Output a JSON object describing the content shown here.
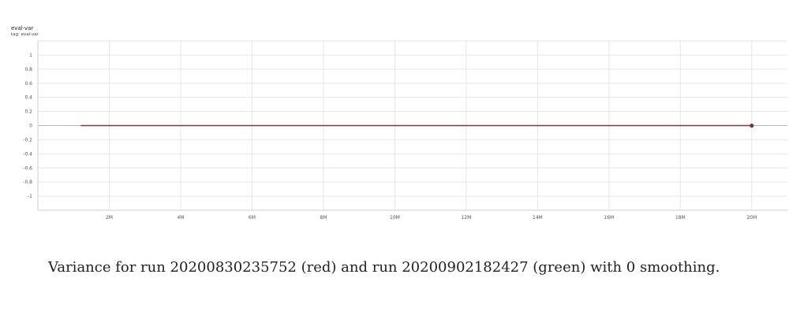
{
  "chart_data": {
    "type": "line",
    "title": "eval-var",
    "tag": "tag: eval-var",
    "xlabel": "",
    "ylabel": "",
    "xlim": [
      0,
      21000000
    ],
    "ylim": [
      -1.2,
      1.2
    ],
    "x_ticks": [
      2000000,
      4000000,
      6000000,
      8000000,
      10000000,
      12000000,
      14000000,
      16000000,
      18000000,
      20000000
    ],
    "x_tick_labels": [
      "2M",
      "4M",
      "6M",
      "8M",
      "10M",
      "12M",
      "14M",
      "16M",
      "18M",
      "20M"
    ],
    "y_ticks": [
      1,
      0.8,
      0.6,
      0.4,
      0.2,
      0,
      -0.2,
      -0.4,
      -0.6,
      -0.8,
      -1
    ],
    "y_tick_labels": [
      "1",
      "0.8",
      "0.6",
      "0.4",
      "0.2",
      "0",
      "-0.2",
      "-0.4",
      "-0.6",
      "-0.8",
      "-1"
    ],
    "grid": true,
    "series": [
      {
        "color": "#7a3a34",
        "x": [
          1200000,
          20000000
        ],
        "values": [
          0,
          0
        ]
      }
    ]
  },
  "caption": "Variance for run 20200830235752 (red) and run 20200902182427 (green) with 0 smoothing."
}
